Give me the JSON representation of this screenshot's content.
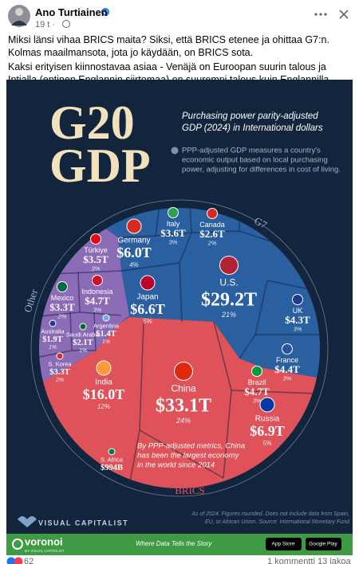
{
  "post": {
    "author": "Ano Turtiainen",
    "time": "19 t",
    "text": [
      "Miksi länsi vihaa BRICS maita? Siksi, että BRICS etenee ja ohittaa G7:n. Kolmas maailmansota, jota jo käydään, on BRICS sota.",
      "Kaksi erityisen kiinnostavaa asiaa - Venäjä on Euroopan suurin talous ja Intialla (entinen Englannin siirtomaa) on suurempi talous kuin Englannilla."
    ]
  },
  "infographic": {
    "title": [
      "G20",
      "GDP"
    ],
    "subtitle": [
      "Purchasing power parity-adjusted",
      "GDP (2024) in International dollars"
    ],
    "note": [
      "PPP-adjusted GDP measures a country's",
      "economic output based on local purchasing",
      "power, adjusting for differences in cost of living."
    ],
    "groups": [
      "G7",
      "Other",
      "BRICS"
    ],
    "countries": [
      {
        "name": "Germany",
        "value": "$6.0T",
        "share": "4%"
      },
      {
        "name": "Italy",
        "value": "$3.6T",
        "share": "3%"
      },
      {
        "name": "Canada",
        "value": "$2.6T",
        "share": "2%"
      },
      {
        "name": "U.S.",
        "value": "$29.2T",
        "share": "21%"
      },
      {
        "name": "Japan",
        "value": "$6.6T",
        "share": "5%"
      },
      {
        "name": "UK",
        "value": "$4.3T",
        "share": "3%"
      },
      {
        "name": "France",
        "value": "$4.4T",
        "share": "3%"
      },
      {
        "name": "Türkiye",
        "value": "$3.5T",
        "share": "3%"
      },
      {
        "name": "Indonesia",
        "value": "$4.7T",
        "share": "3%"
      },
      {
        "name": "Mexico",
        "value": "$3.3T",
        "share": "2%"
      },
      {
        "name": "Australia",
        "value": "$1.9T",
        "share": "1%"
      },
      {
        "name": "Saudi Arabia",
        "value": "$2.1T",
        "share": "1%"
      },
      {
        "name": "Argentina",
        "value": "$1.4T",
        "share": "1%"
      },
      {
        "name": "S. Korea",
        "value": "$3.3T",
        "share": "2%"
      },
      {
        "name": "India",
        "value": "$16.0T",
        "share": "12%"
      },
      {
        "name": "China",
        "value": "$33.1T",
        "share": "24%"
      },
      {
        "name": "Brazil",
        "value": "$4.7T",
        "share": "3%"
      },
      {
        "name": "Russia",
        "value": "$6.9T",
        "share": "5%"
      },
      {
        "name": "S. Africa",
        "value": "$994B"
      }
    ],
    "callout": [
      "By PPP-adjusted metrics, China",
      "has been the largest economy",
      "in the world since 2014"
    ],
    "source": [
      "As of 2024. Figures rounded. Does not include data from Spain,",
      "EU, or African Union. Source: International Monetary Fund"
    ],
    "brand": "VISUAL CAPITALIST",
    "footer_brand": "voronoi",
    "footer_sub": "BY VISUAL CAPITALIST",
    "tagline": "Where Data Tells the Story",
    "badges": [
      "App Store",
      "Google Play"
    ]
  },
  "stats": {
    "reactions": "62",
    "comments": "1 kommentti",
    "shares": "13 jakoa"
  }
}
